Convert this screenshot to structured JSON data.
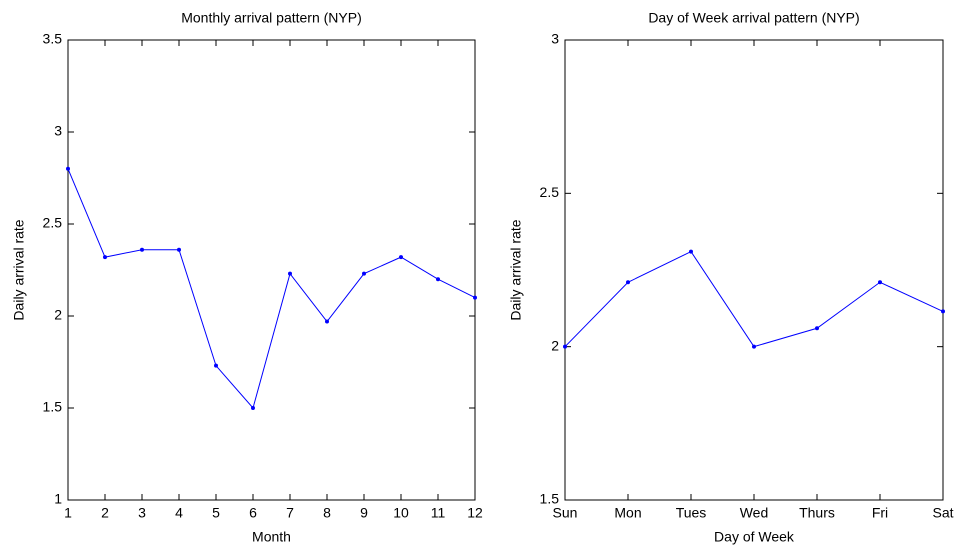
{
  "chart_data": [
    {
      "type": "line",
      "title": "Monthly arrival pattern (NYP)",
      "x_label": "Month",
      "y_label": "Daily arrival rate",
      "x": [
        1,
        2,
        3,
        4,
        5,
        6,
        7,
        8,
        9,
        10,
        11,
        12
      ],
      "values": [
        2.8,
        2.32,
        2.36,
        2.36,
        1.73,
        1.5,
        2.23,
        1.97,
        2.23,
        2.32,
        2.2,
        2.1
      ],
      "color": "#0000ff",
      "xlim": [
        1,
        12
      ],
      "xticks": [
        1,
        2,
        3,
        4,
        5,
        6,
        7,
        8,
        9,
        10,
        11,
        12
      ],
      "ylim": [
        1,
        3.5
      ],
      "yticks": [
        1,
        1.5,
        2,
        2.5,
        3,
        3.5
      ]
    },
    {
      "type": "line",
      "title": "Day of Week arrival pattern (NYP)",
      "x_label": "Day of Week",
      "y_label": "Daily arrival rate",
      "categories": [
        "Sun",
        "Mon",
        "Tues",
        "Wed",
        "Thurs",
        "Fri",
        "Sat"
      ],
      "values": [
        2.0,
        2.21,
        2.31,
        2.0,
        2.06,
        2.21,
        2.115
      ],
      "color": "#0000ff",
      "ylim": [
        1.5,
        3
      ],
      "yticks": [
        1.5,
        2,
        2.5,
        3
      ]
    }
  ]
}
